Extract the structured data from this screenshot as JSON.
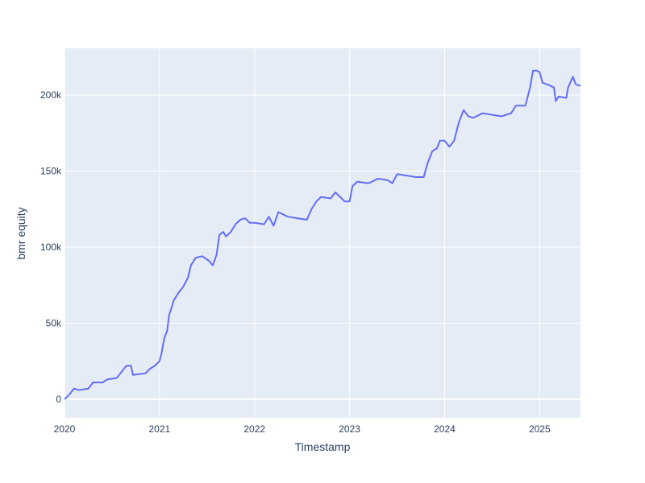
{
  "chart_data": {
    "type": "line",
    "x_label": "Timestamp",
    "y_label": "bmr equity",
    "x": [
      2020.0,
      2020.05,
      2020.1,
      2020.15,
      2020.25,
      2020.3,
      2020.4,
      2020.45,
      2020.55,
      2020.6,
      2020.65,
      2020.7,
      2020.72,
      2020.85,
      2020.9,
      2020.95,
      2021.0,
      2021.02,
      2021.05,
      2021.08,
      2021.1,
      2021.15,
      2021.2,
      2021.25,
      2021.3,
      2021.33,
      2021.38,
      2021.45,
      2021.52,
      2021.56,
      2021.6,
      2021.63,
      2021.67,
      2021.7,
      2021.75,
      2021.8,
      2021.85,
      2021.9,
      2021.95,
      2022.0,
      2022.1,
      2022.15,
      2022.2,
      2022.25,
      2022.35,
      2022.45,
      2022.55,
      2022.6,
      2022.65,
      2022.7,
      2022.8,
      2022.85,
      2022.9,
      2022.95,
      2023.0,
      2023.03,
      2023.08,
      2023.2,
      2023.3,
      2023.4,
      2023.45,
      2023.5,
      2023.6,
      2023.7,
      2023.78,
      2023.82,
      2023.87,
      2023.92,
      2023.95,
      2024.0,
      2024.05,
      2024.1,
      2024.15,
      2024.2,
      2024.25,
      2024.3,
      2024.4,
      2024.5,
      2024.6,
      2024.7,
      2024.75,
      2024.85,
      2024.9,
      2024.93,
      2024.97,
      2025.0,
      2025.03,
      2025.08,
      2025.15,
      2025.17,
      2025.2,
      2025.28,
      2025.3,
      2025.35,
      2025.38,
      2025.43
    ],
    "series": [
      {
        "color": "#636efa",
        "values": [
          0,
          3000,
          7000,
          6000,
          7000,
          11000,
          11000,
          13000,
          14000,
          18000,
          22000,
          22000,
          16000,
          17000,
          20000,
          22000,
          25000,
          30000,
          40000,
          45000,
          55000,
          65000,
          70000,
          74000,
          80000,
          88000,
          93000,
          94000,
          91000,
          88000,
          95000,
          108000,
          110000,
          107000,
          110000,
          115000,
          118000,
          119000,
          116000,
          116000,
          115000,
          120000,
          114000,
          123000,
          120000,
          119000,
          118000,
          125000,
          130000,
          133000,
          132000,
          136000,
          133000,
          130000,
          130000,
          140000,
          143000,
          142000,
          145000,
          144000,
          142000,
          148000,
          147000,
          146000,
          146000,
          155000,
          163000,
          165000,
          170000,
          170000,
          166000,
          170000,
          182000,
          190000,
          186000,
          185000,
          188000,
          187000,
          186000,
          188000,
          193000,
          193000,
          205000,
          216000,
          216000,
          215000,
          208000,
          207000,
          205000,
          196000,
          199000,
          198000,
          205000,
          212000,
          207000,
          206000
        ]
      }
    ],
    "xlim": [
      2020,
      2025.43
    ],
    "xticks": [
      2020,
      2021,
      2022,
      2023,
      2024,
      2025
    ],
    "ylim": [
      -12200,
      230700
    ],
    "yticks": [
      0,
      {
        "value": 50000,
        "label": "50k"
      },
      {
        "value": 100000,
        "label": "100k"
      },
      {
        "value": 150000,
        "label": "150k"
      },
      {
        "value": 200000,
        "label": "200k"
      }
    ],
    "grid": true
  }
}
